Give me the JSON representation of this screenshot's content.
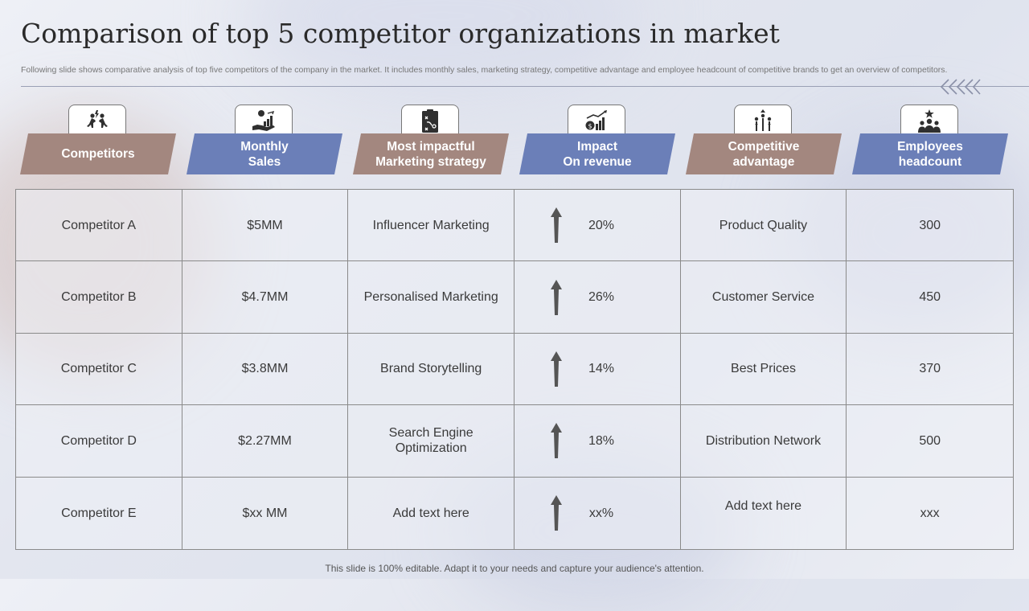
{
  "slide": {
    "title": "Comparison of top 5 competitor organizations in market",
    "subtitle": "Following slide shows comparative analysis of top five  competitors of the company in the market. It includes monthly sales, marketing strategy,  competitive advantage and employee headcount of competitive brands to get an overview  of competitors.",
    "footer": "This slide is 100% editable. Adapt it to your needs and capture your audience's attention."
  },
  "colors": {
    "brown": "#a3877f",
    "blue": "#6b7fb8",
    "icon": "#2f2f2f"
  },
  "columns": [
    {
      "label": "Competitors",
      "icon": "people-competing-icon",
      "color": "brown"
    },
    {
      "label": "Monthly\nSales",
      "icon": "hand-dollar-chart-icon",
      "color": "blue"
    },
    {
      "label": "Most impactful\nMarketing strategy",
      "icon": "strategy-board-icon",
      "color": "brown"
    },
    {
      "label": "Impact\nOn revenue",
      "icon": "revenue-growth-icon",
      "color": "blue"
    },
    {
      "label": "Competitive\nadvantage",
      "icon": "advantage-arrows-icon",
      "color": "brown"
    },
    {
      "label": "Employees\nheadcount",
      "icon": "team-star-icon",
      "color": "blue"
    }
  ],
  "rows": [
    {
      "competitor": "Competitor A",
      "sales": "$5MM",
      "strategy": "Influencer  Marketing",
      "impact": "20%",
      "advantage": "Product Quality",
      "headcount": "300"
    },
    {
      "competitor": "Competitor B",
      "sales": "$4.7MM",
      "strategy": "Personalised Marketing",
      "impact": "26%",
      "advantage": "Customer Service",
      "headcount": "450"
    },
    {
      "competitor": "Competitor C",
      "sales": "$3.8MM",
      "strategy": "Brand Storytelling",
      "impact": "14%",
      "advantage": "Best Prices",
      "headcount": "370"
    },
    {
      "competitor": "Competitor D",
      "sales": "$2.27MM",
      "strategy": "Search Engine\nOptimization",
      "impact": "18%",
      "advantage": "Distribution Network",
      "headcount": "500"
    },
    {
      "competitor": "Competitor E",
      "sales": "$xx MM",
      "strategy": "Add text here",
      "impact": "xx%",
      "advantage": "Add text here",
      "headcount": "xxx"
    }
  ]
}
